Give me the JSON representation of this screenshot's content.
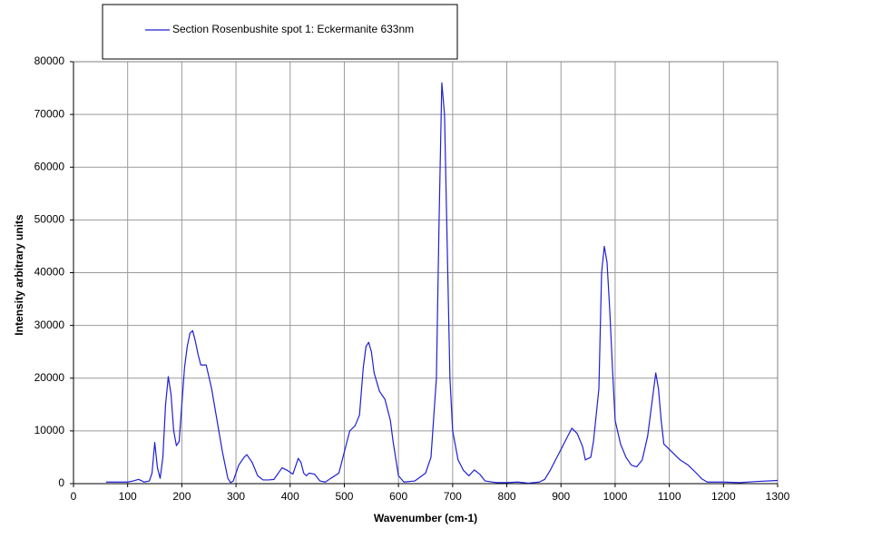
{
  "chart_data": {
    "type": "line",
    "x_label": "Wavenumber (cm-1)",
    "y_label": "Intensity  arbitrary units",
    "xlim": [
      0,
      1300
    ],
    "xticks": [
      0,
      100,
      200,
      300,
      400,
      500,
      600,
      700,
      800,
      900,
      1000,
      1100,
      1200,
      1300
    ],
    "ylim": [
      0,
      80000
    ],
    "yticks": [
      0,
      10000,
      20000,
      30000,
      40000,
      50000,
      60000,
      70000,
      80000
    ],
    "grid": true,
    "legend": "top",
    "x": [
      60,
      100,
      110,
      120,
      125,
      130,
      140,
      145,
      150,
      155,
      160,
      165,
      170,
      175,
      180,
      185,
      190,
      195,
      200,
      205,
      210,
      215,
      220,
      225,
      230,
      235,
      245,
      255,
      265,
      275,
      285,
      290,
      295,
      305,
      315,
      320,
      330,
      340,
      350,
      360,
      370,
      385,
      395,
      405,
      415,
      420,
      425,
      430,
      435,
      445,
      455,
      465,
      475,
      490,
      500,
      510,
      520,
      528,
      535,
      540,
      545,
      550,
      555,
      565,
      575,
      585,
      590,
      600,
      610,
      630,
      650,
      660,
      670,
      675,
      680,
      685,
      690,
      695,
      700,
      710,
      720,
      730,
      740,
      750,
      760,
      780,
      800,
      820,
      840,
      850,
      860,
      870,
      880,
      890,
      900,
      910,
      920,
      930,
      940,
      945,
      955,
      960,
      970,
      975,
      980,
      985,
      990,
      995,
      1000,
      1010,
      1020,
      1030,
      1040,
      1050,
      1060,
      1070,
      1075,
      1080,
      1085,
      1090,
      1100,
      1110,
      1120,
      1135,
      1150,
      1160,
      1170,
      1200,
      1230,
      1260,
      1300
    ],
    "series": [
      {
        "name": "Section Rosenbushite spot 1: Eckermanite 633nm",
        "color": "#1f1fd6",
        "values": [
          300,
          300,
          500,
          800,
          600,
          300,
          500,
          2000,
          7800,
          3000,
          1000,
          5000,
          15000,
          20300,
          17000,
          10000,
          7200,
          8000,
          15000,
          22000,
          26000,
          28500,
          29000,
          27000,
          24500,
          22500,
          22500,
          18000,
          12000,
          6000,
          1000,
          200,
          500,
          3500,
          5000,
          5500,
          4000,
          1500,
          700,
          700,
          800,
          3000,
          2500,
          1800,
          4800,
          4000,
          2000,
          1500,
          2000,
          1800,
          500,
          300,
          1000,
          2000,
          6000,
          10000,
          11000,
          13000,
          22000,
          26000,
          26800,
          25000,
          21000,
          17500,
          16000,
          12000,
          8000,
          1500,
          300,
          500,
          2000,
          5000,
          20000,
          50000,
          76000,
          70000,
          45000,
          20000,
          10000,
          4500,
          2500,
          1500,
          2600,
          1800,
          500,
          200,
          200,
          300,
          100,
          200,
          300,
          800,
          2500,
          4500,
          6500,
          8500,
          10500,
          9500,
          7000,
          4500,
          5000,
          8000,
          18000,
          40000,
          45000,
          42000,
          33000,
          22000,
          12000,
          7500,
          5000,
          3500,
          3200,
          4500,
          9000,
          17000,
          21000,
          18000,
          12000,
          7500,
          6500,
          5500,
          4500,
          3500,
          2000,
          900,
          300,
          300,
          200,
          400,
          600
        ]
      }
    ]
  }
}
